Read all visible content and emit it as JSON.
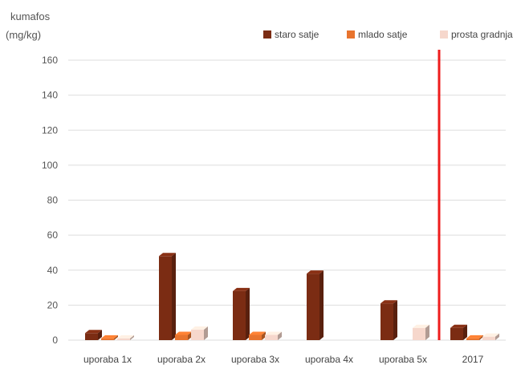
{
  "chart_data": {
    "type": "bar",
    "ylabel_lines": [
      "kumafos",
      "(mg/kg)"
    ],
    "categories": [
      "uporaba 1x",
      "uporaba 2x",
      "uporaba 3x",
      "uporaba 4x",
      "uporaba 5x",
      "2017"
    ],
    "series": [
      {
        "name": "staro satje",
        "color": "#7b2c13",
        "values": [
          4,
          48,
          28,
          38,
          21,
          7
        ]
      },
      {
        "name": "mlado satje",
        "color": "#e8742e",
        "values": [
          1,
          3,
          3,
          0,
          0,
          1
        ]
      },
      {
        "name": "prosta gradnja",
        "color": "#f6d7cc",
        "values": [
          1,
          6,
          3,
          0,
          7,
          2
        ]
      }
    ],
    "yticks": [
      0,
      20,
      40,
      60,
      80,
      100,
      120,
      140,
      160
    ],
    "ylim": [
      0,
      160
    ],
    "grid": true,
    "legend": "top-right",
    "divider": {
      "after_category": 4,
      "color": "#ee1c1c"
    }
  }
}
